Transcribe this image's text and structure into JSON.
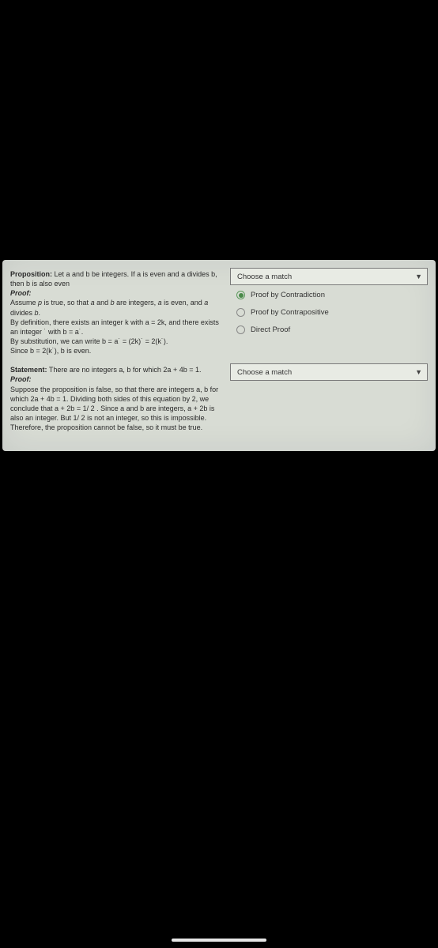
{
  "colors": {
    "page_bg": "#000000",
    "panel_bg": "#d8dcd4",
    "select_bg": "#e8ebe4",
    "select_border": "#7a7a7a",
    "radio_selected": "#4a8a4a",
    "text": "#2a2a2a"
  },
  "q1": {
    "proposition_label": "Proposition:",
    "proposition_text": " Let a and b be integers. If a is even and a divides b, then b is also even",
    "proof_label": "Proof:",
    "line1a": "Assume ",
    "line1b": "p",
    "line1c": " is true, so that ",
    "line1d": "a",
    "line1e": " and ",
    "line1f": "b",
    "line1g": " are integers, ",
    "line1h": "a",
    "line1i": " is even, and ",
    "line1j": "a",
    "line1k": " divides ",
    "line1l": "b",
    "line1m": ".",
    "line2": "By definition, there exists an integer k with a = 2k, and there exists an integer ˙ with b = a˙.",
    "line3": "By substitution, we can write b = a˙ = (2k)˙ = 2(k˙).",
    "line4": "Since b = 2(k˙), b is even."
  },
  "q2": {
    "statement_label": "Statement:",
    "statement_text": " There are no integers a, b for which 2a + 4b = 1.",
    "proof_label": "Proof:",
    "body1": "Suppose the proposition is false, so that there are integers a, b for which 2a + 4b = 1. Dividing both sides of this equation by 2, we conclude that a + 2b = 1/ 2 . Since a and b are integers, a + 2b is also an integer. But 1/ 2 is not an integer, so this is impossible.",
    "body2": "Therefore, the proposition cannot be false, so it must be true."
  },
  "select_placeholder": "Choose a match",
  "options": {
    "opt1": "Proof by Contradiction",
    "opt2": "Proof by Contrapositive",
    "opt3": "Direct Proof"
  }
}
